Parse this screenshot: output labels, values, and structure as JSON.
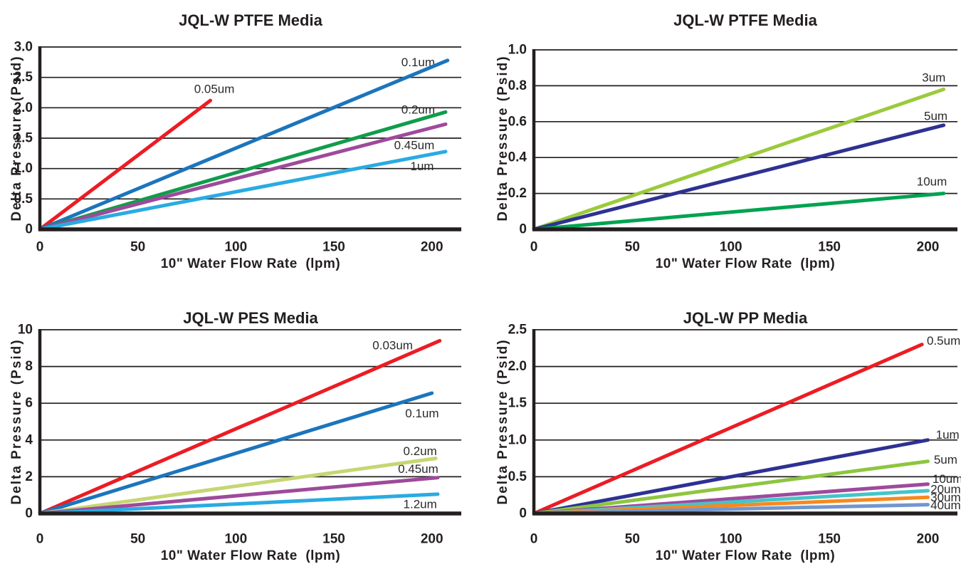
{
  "page": {
    "background": "#ffffff",
    "text_color": "#231F20",
    "grid_color": "#231F20"
  },
  "chart_data": [
    {
      "type": "line",
      "title": "JQL-W PTFE Media",
      "xlabel": "10\" Water Flow Rate  (lpm)",
      "ylabel": "Delta Pressure (Psid)",
      "xlim": [
        0,
        215
      ],
      "ylim": [
        0,
        3.0
      ],
      "grid": "horizontal",
      "legend_position": "inline-labels",
      "xticks": [
        {
          "v": 0,
          "t": "0"
        },
        {
          "v": 50,
          "t": "50"
        },
        {
          "v": 100,
          "t": "100"
        },
        {
          "v": 150,
          "t": "150"
        },
        {
          "v": 200,
          "t": "200"
        }
      ],
      "yticks": [
        {
          "v": 0,
          "t": "0"
        },
        {
          "v": 0.5,
          "t": "0.5"
        },
        {
          "v": 1.0,
          "t": "1.0"
        },
        {
          "v": 1.5,
          "t": "1.5"
        },
        {
          "v": 2.0,
          "t": "2.0"
        },
        {
          "v": 2.5,
          "t": "2.5"
        },
        {
          "v": 3.0,
          "t": "3.0"
        }
      ],
      "series": [
        {
          "name": "0.05um",
          "color": "#EC1C24",
          "points": [
            [
              0,
              0
            ],
            [
              87,
              2.12
            ]
          ],
          "label": {
            "x": 89,
            "y": 2.31
          }
        },
        {
          "name": "0.1um",
          "color": "#1B75BC",
          "points": [
            [
              0,
              0
            ],
            [
              208,
              2.78
            ]
          ],
          "label": {
            "x": 193,
            "y": 2.75
          }
        },
        {
          "name": "0.2um",
          "color": "#119C4B",
          "points": [
            [
              0,
              0
            ],
            [
              207,
              1.93
            ]
          ],
          "label": {
            "x": 193,
            "y": 1.97
          }
        },
        {
          "name": "0.45um",
          "color": "#9E4A9B",
          "points": [
            [
              0,
              0
            ],
            [
              207,
              1.73
            ]
          ],
          "label": {
            "x": 191,
            "y": 1.38
          }
        },
        {
          "name": "1um",
          "color": "#29ABE2",
          "points": [
            [
              0,
              0
            ],
            [
              207,
              1.28
            ]
          ],
          "label": {
            "x": 195,
            "y": 1.04
          }
        }
      ]
    },
    {
      "type": "line",
      "title": "JQL-W PTFE Media",
      "xlabel": "10\" Water Flow Rate  (lpm)",
      "ylabel": "Delta Pressure (Psid)",
      "xlim": [
        0,
        215
      ],
      "ylim": [
        0,
        1.0
      ],
      "grid": "horizontal",
      "legend_position": "inline-labels",
      "xticks": [
        {
          "v": 0,
          "t": "0"
        },
        {
          "v": 50,
          "t": "50"
        },
        {
          "v": 100,
          "t": "100"
        },
        {
          "v": 150,
          "t": "150"
        },
        {
          "v": 200,
          "t": "200"
        }
      ],
      "yticks": [
        {
          "v": 0,
          "t": "0"
        },
        {
          "v": 0.2,
          "t": "0.2"
        },
        {
          "v": 0.4,
          "t": "0.4"
        },
        {
          "v": 0.6,
          "t": "0.6"
        },
        {
          "v": 0.8,
          "t": "0.8"
        },
        {
          "v": 1.0,
          "t": "1.0"
        }
      ],
      "series": [
        {
          "name": "3um",
          "color": "#9BCA3C",
          "points": [
            [
              0,
              0
            ],
            [
              208,
              0.78
            ]
          ],
          "label": {
            "x": 203,
            "y": 0.845
          }
        },
        {
          "name": "5um",
          "color": "#2E3192",
          "points": [
            [
              0,
              0
            ],
            [
              208,
              0.58
            ]
          ],
          "label": {
            "x": 204,
            "y": 0.63
          }
        },
        {
          "name": "10um",
          "color": "#00A351",
          "points": [
            [
              0,
              0
            ],
            [
              208,
              0.2
            ]
          ],
          "label": {
            "x": 202,
            "y": 0.265
          }
        }
      ]
    },
    {
      "type": "line",
      "title": "JQL-W PES Media",
      "xlabel": "10\" Water Flow Rate  (lpm)",
      "ylabel": "Delta Pressure (Psid)",
      "xlim": [
        0,
        215
      ],
      "ylim": [
        0,
        10
      ],
      "grid": "horizontal",
      "legend_position": "inline-labels",
      "xticks": [
        {
          "v": 0,
          "t": "0"
        },
        {
          "v": 50,
          "t": "50"
        },
        {
          "v": 100,
          "t": "100"
        },
        {
          "v": 150,
          "t": "150"
        },
        {
          "v": 200,
          "t": "200"
        }
      ],
      "yticks": [
        {
          "v": 0,
          "t": "0"
        },
        {
          "v": 2,
          "t": "2"
        },
        {
          "v": 4,
          "t": "4"
        },
        {
          "v": 6,
          "t": "6"
        },
        {
          "v": 8,
          "t": "8"
        },
        {
          "v": 10,
          "t": "10"
        }
      ],
      "series": [
        {
          "name": "0.03um",
          "color": "#EC1C24",
          "points": [
            [
              0,
              0
            ],
            [
              204,
              9.4
            ]
          ],
          "label": {
            "x": 180,
            "y": 9.15
          }
        },
        {
          "name": "0.1um",
          "color": "#1B75BC",
          "points": [
            [
              0,
              0
            ],
            [
              200,
              6.55
            ]
          ],
          "label": {
            "x": 195,
            "y": 5.45
          }
        },
        {
          "name": "0.2um",
          "color": "#C6D672",
          "points": [
            [
              0,
              0
            ],
            [
              202,
              3.0
            ]
          ],
          "label": {
            "x": 194,
            "y": 3.4
          }
        },
        {
          "name": "0.45um",
          "color": "#9E4A9B",
          "points": [
            [
              0,
              0
            ],
            [
              203,
              1.95
            ]
          ],
          "label": {
            "x": 193,
            "y": 2.42
          }
        },
        {
          "name": "1.2um",
          "color": "#29ABE2",
          "points": [
            [
              0,
              0
            ],
            [
              203,
              1.05
            ]
          ],
          "label": {
            "x": 194,
            "y": 0.5
          }
        }
      ]
    },
    {
      "type": "line",
      "title": "JQL-W PP Media",
      "xlabel": "10\" Water Flow Rate  (lpm)",
      "ylabel": "Delta Pressure (Psid)",
      "xlim": [
        0,
        215
      ],
      "ylim": [
        0,
        2.5
      ],
      "grid": "horizontal",
      "legend_position": "inline-labels",
      "xticks": [
        {
          "v": 0,
          "t": "0"
        },
        {
          "v": 50,
          "t": "50"
        },
        {
          "v": 100,
          "t": "100"
        },
        {
          "v": 150,
          "t": "150"
        },
        {
          "v": 200,
          "t": "200"
        }
      ],
      "yticks": [
        {
          "v": 0,
          "t": "0"
        },
        {
          "v": 0.5,
          "t": "0.5"
        },
        {
          "v": 1.0,
          "t": "1.0"
        },
        {
          "v": 1.5,
          "t": "1.5"
        },
        {
          "v": 2.0,
          "t": "2.0"
        },
        {
          "v": 2.5,
          "t": "2.5"
        }
      ],
      "series": [
        {
          "name": "0.5um",
          "color": "#EC1C24",
          "points": [
            [
              0,
              0
            ],
            [
              197,
              2.3
            ]
          ],
          "label": {
            "x": 208,
            "y": 2.35
          }
        },
        {
          "name": "1um",
          "color": "#2E3192",
          "points": [
            [
              0,
              0
            ],
            [
              200,
              1.0
            ]
          ],
          "label": {
            "x": 210,
            "y": 1.07
          }
        },
        {
          "name": "5um",
          "color": "#8DC63F",
          "points": [
            [
              0,
              0
            ],
            [
              200,
              0.71
            ]
          ],
          "label": {
            "x": 209,
            "y": 0.73
          }
        },
        {
          "name": "10um",
          "color": "#9E4A9B",
          "points": [
            [
              0,
              0
            ],
            [
              200,
              0.4
            ]
          ],
          "label": {
            "x": 210,
            "y": 0.47
          }
        },
        {
          "name": "20um",
          "color": "#45C5C8",
          "points": [
            [
              0,
              0
            ],
            [
              200,
              0.31
            ]
          ],
          "label": {
            "x": 209,
            "y": 0.33
          }
        },
        {
          "name": "30um",
          "color": "#F6891F",
          "points": [
            [
              0,
              0
            ],
            [
              200,
              0.22
            ]
          ],
          "label": {
            "x": 209,
            "y": 0.22
          }
        },
        {
          "name": "40um",
          "color": "#7296CE",
          "points": [
            [
              0,
              0
            ],
            [
              200,
              0.12
            ]
          ],
          "label": {
            "x": 209,
            "y": 0.11
          }
        }
      ]
    }
  ]
}
